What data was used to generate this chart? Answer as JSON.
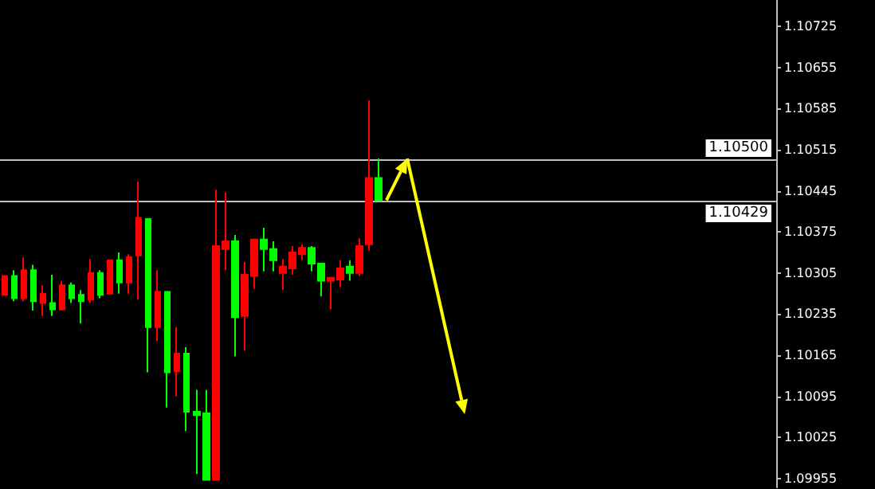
{
  "chart_data": {
    "type": "candlestick",
    "categories": [
      null,
      null,
      null,
      null,
      null,
      null,
      null,
      null,
      null,
      null,
      null,
      null,
      null,
      null,
      null,
      null,
      null,
      null,
      null,
      null,
      null,
      null,
      null,
      null,
      null,
      null,
      null,
      null,
      null,
      null,
      null,
      null,
      null,
      null,
      null,
      null,
      null,
      null,
      null,
      null,
      null,
      null,
      null,
      null,
      null,
      null,
      null,
      null,
      null,
      null,
      null,
      null,
      null,
      null,
      null,
      null,
      null,
      null,
      null,
      null,
      null,
      null,
      null,
      null,
      null,
      null,
      null,
      null,
      null,
      null,
      null,
      null,
      null,
      null,
      null,
      null,
      null,
      null,
      null,
      null,
      null
    ],
    "ohlc": [
      [
        1.10268,
        1.103,
        1.10268,
        1.103
      ],
      [
        1.103,
        1.1031,
        1.10257,
        1.10262
      ],
      [
        1.10262,
        1.10332,
        1.10257,
        1.1031
      ],
      [
        1.1031,
        1.10319,
        1.10241,
        1.10257
      ],
      [
        1.10254,
        1.10284,
        1.10232,
        1.1027
      ],
      [
        1.10254,
        1.10302,
        1.10232,
        1.10243
      ],
      [
        1.10243,
        1.10292,
        1.10241,
        1.10284
      ],
      [
        1.10284,
        1.10289,
        1.10254,
        1.10262
      ],
      [
        1.10268,
        1.10276,
        1.10219,
        1.10257
      ],
      [
        1.1026,
        1.10329,
        1.10254,
        1.10305
      ],
      [
        1.10305,
        1.1031,
        1.10262,
        1.10268
      ],
      [
        1.1027,
        1.10327,
        1.1027,
        1.10327
      ],
      [
        1.10327,
        1.1034,
        1.1027,
        1.10289
      ],
      [
        1.10289,
        1.10337,
        1.1027,
        1.10332
      ],
      [
        1.10335,
        1.10461,
        1.1026,
        1.10399
      ],
      [
        1.10397,
        1.10397,
        1.10136,
        1.10213
      ],
      [
        1.10213,
        1.1031,
        1.10189,
        1.10273
      ],
      [
        1.10273,
        1.10273,
        1.10076,
        1.10136
      ],
      [
        1.10138,
        1.10213,
        1.10095,
        1.10168
      ],
      [
        1.10168,
        1.10179,
        1.10036,
        1.10069
      ],
      [
        1.10069,
        1.10106,
        1.09963,
        1.10063
      ],
      [
        1.10066,
        1.10106,
        1.09953,
        1.09953
      ],
      [
        1.09953,
        1.10447,
        1.09953,
        1.10351
      ],
      [
        1.10346,
        1.10442,
        1.1031,
        1.10359
      ],
      [
        1.10359,
        1.1037,
        1.10163,
        1.1023
      ],
      [
        1.10232,
        1.10324,
        1.10173,
        1.10302
      ],
      [
        1.103,
        1.10362,
        1.10278,
        1.10362
      ],
      [
        1.10362,
        1.10382,
        1.10308,
        1.10346
      ],
      [
        1.10346,
        1.10359,
        1.10308,
        1.10327
      ],
      [
        1.10305,
        1.10329,
        1.10276,
        1.10316
      ],
      [
        1.10313,
        1.10351,
        1.10302,
        1.1034
      ],
      [
        1.10337,
        1.10354,
        1.10327,
        1.10348
      ],
      [
        1.10348,
        1.10351,
        1.10308,
        1.10321
      ],
      [
        1.10321,
        1.10321,
        1.10265,
        1.10292
      ],
      [
        1.10292,
        1.10297,
        1.10243,
        1.10297
      ],
      [
        1.10294,
        1.10327,
        1.10281,
        1.10313
      ],
      [
        1.10316,
        1.10327,
        1.10292,
        1.10305
      ],
      [
        1.10305,
        1.10364,
        1.103,
        1.10351
      ],
      [
        1.10354,
        1.10599,
        1.10343,
        1.10467
      ],
      [
        1.10467,
        1.105,
        1.10429,
        1.10429
      ],
      null,
      null,
      null,
      null,
      null,
      null,
      null,
      null,
      null,
      null,
      null,
      null,
      null,
      null,
      null,
      null,
      null,
      null,
      null,
      null,
      null,
      null,
      null,
      null,
      null,
      null,
      null,
      null,
      null,
      null,
      null,
      null,
      null,
      null,
      null,
      null,
      null,
      null,
      null,
      null,
      null
    ],
    "colors": [
      "#ff0000",
      "#00ff00",
      "#ff0000",
      "#00ff00",
      "#ff0000",
      "#00ff00",
      "#ff0000",
      "#00ff00",
      "#00ff00",
      "#ff0000",
      "#00ff00",
      "#ff0000",
      "#00ff00",
      "#ff0000",
      "#ff0000",
      "#00ff00",
      "#ff0000",
      "#00ff00",
      "#ff0000",
      "#00ff00",
      "#00ff00",
      "#00ff00",
      "#ff0000",
      "#ff0000",
      "#00ff00",
      "#ff0000",
      "#ff0000",
      "#00ff00",
      "#00ff00",
      "#ff0000",
      "#ff0000",
      "#ff0000",
      "#00ff00",
      "#00ff00",
      "#ff0000",
      "#ff0000",
      "#00ff00",
      "#ff0000",
      "#ff0000",
      "#00ff00",
      null,
      null,
      null,
      null,
      null,
      null,
      null,
      null,
      null,
      null,
      null,
      null,
      null,
      null,
      null,
      null,
      null,
      null,
      null,
      null,
      null,
      null,
      null,
      null,
      null,
      null,
      null,
      null,
      null,
      null,
      null,
      null,
      null,
      null,
      null,
      null,
      null,
      null,
      null,
      null,
      null
    ],
    "ylim": [
      1.0994,
      1.1077
    ],
    "yticks": [
      1.09955,
      1.10025,
      1.10095,
      1.10165,
      1.10235,
      1.10305,
      1.10375,
      1.10445,
      1.10515,
      1.10585,
      1.10655,
      1.10725
    ],
    "tick_labels": "y",
    "grid": false,
    "ref_lines": [
      {
        "axis": "y",
        "value": 1.105,
        "label": "1.10500",
        "color": "#c0c0c0"
      },
      {
        "axis": "y",
        "value": 1.10429,
        "label": "1.10429",
        "color": "#c0c0c0"
      }
    ]
  }
}
